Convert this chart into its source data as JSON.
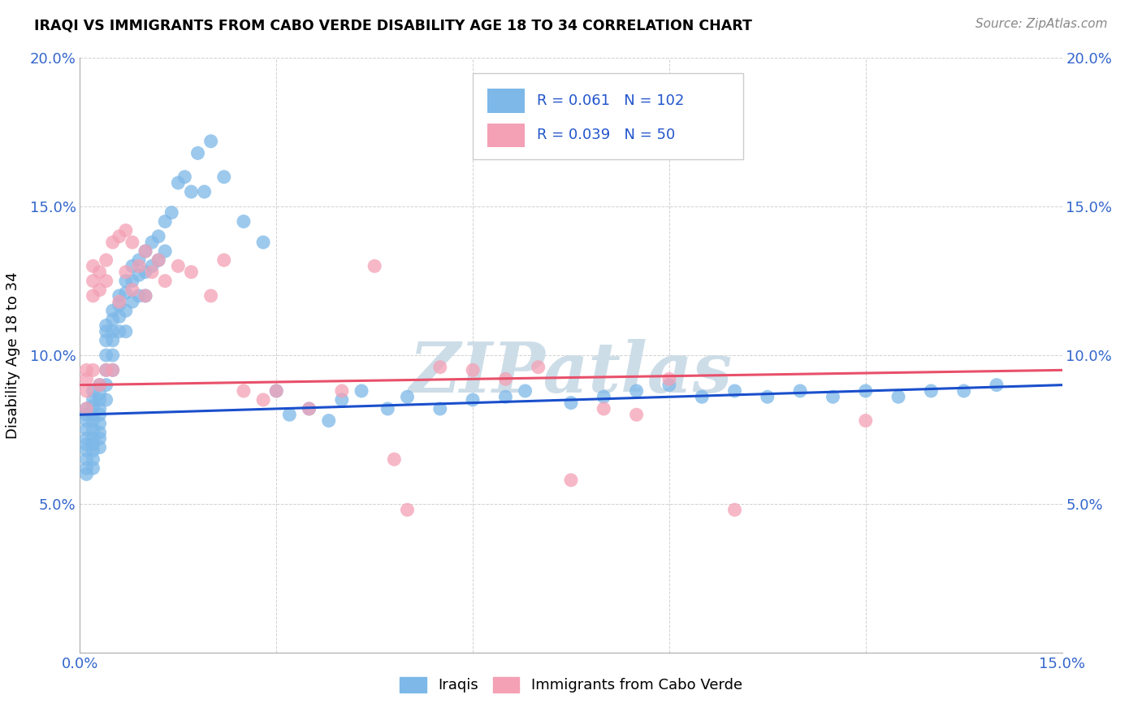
{
  "title": "IRAQI VS IMMIGRANTS FROM CABO VERDE DISABILITY AGE 18 TO 34 CORRELATION CHART",
  "source": "Source: ZipAtlas.com",
  "ylabel": "Disability Age 18 to 34",
  "xlim": [
    0.0,
    0.15
  ],
  "ylim": [
    0.0,
    0.2
  ],
  "iraqis_color": "#7db8e8",
  "cabo_verde_color": "#f4a0b5",
  "iraqis_line_color": "#1a4fcc",
  "cabo_verde_line_color": "#e8506a",
  "iraqis_R": 0.061,
  "iraqis_N": 102,
  "cabo_verde_R": 0.039,
  "cabo_verde_N": 50,
  "legend_label_iraqis": "Iraqis",
  "legend_label_cabo_verde": "Immigrants from Cabo Verde",
  "watermark": "ZIPatlas",
  "watermark_color": "#cddde8",
  "iraqis_line_start_y": 0.08,
  "iraqis_line_end_y": 0.09,
  "cabo_verde_line_start_y": 0.09,
  "cabo_verde_line_end_y": 0.095,
  "iraqis_x": [
    0.001,
    0.001,
    0.001,
    0.001,
    0.001,
    0.001,
    0.001,
    0.001,
    0.001,
    0.001,
    0.002,
    0.002,
    0.002,
    0.002,
    0.002,
    0.002,
    0.002,
    0.002,
    0.002,
    0.002,
    0.002,
    0.003,
    0.003,
    0.003,
    0.003,
    0.003,
    0.003,
    0.003,
    0.003,
    0.003,
    0.004,
    0.004,
    0.004,
    0.004,
    0.004,
    0.004,
    0.004,
    0.005,
    0.005,
    0.005,
    0.005,
    0.005,
    0.005,
    0.006,
    0.006,
    0.006,
    0.006,
    0.007,
    0.007,
    0.007,
    0.007,
    0.008,
    0.008,
    0.008,
    0.009,
    0.009,
    0.009,
    0.01,
    0.01,
    0.01,
    0.011,
    0.011,
    0.012,
    0.012,
    0.013,
    0.013,
    0.014,
    0.015,
    0.016,
    0.017,
    0.018,
    0.019,
    0.02,
    0.022,
    0.025,
    0.028,
    0.03,
    0.032,
    0.035,
    0.038,
    0.04,
    0.043,
    0.047,
    0.05,
    0.055,
    0.06,
    0.065,
    0.068,
    0.075,
    0.08,
    0.085,
    0.09,
    0.095,
    0.1,
    0.105,
    0.11,
    0.115,
    0.12,
    0.125,
    0.13,
    0.135,
    0.14
  ],
  "iraqis_y": [
    0.082,
    0.08,
    0.078,
    0.075,
    0.072,
    0.07,
    0.068,
    0.065,
    0.062,
    0.06,
    0.085,
    0.083,
    0.08,
    0.078,
    0.075,
    0.072,
    0.07,
    0.068,
    0.065,
    0.062,
    0.088,
    0.09,
    0.087,
    0.085,
    0.082,
    0.08,
    0.077,
    0.074,
    0.072,
    0.069,
    0.11,
    0.108,
    0.105,
    0.1,
    0.095,
    0.09,
    0.085,
    0.115,
    0.112,
    0.108,
    0.105,
    0.1,
    0.095,
    0.12,
    0.117,
    0.113,
    0.108,
    0.125,
    0.121,
    0.115,
    0.108,
    0.13,
    0.125,
    0.118,
    0.132,
    0.127,
    0.12,
    0.135,
    0.128,
    0.12,
    0.138,
    0.13,
    0.14,
    0.132,
    0.145,
    0.135,
    0.148,
    0.158,
    0.16,
    0.155,
    0.168,
    0.155,
    0.172,
    0.16,
    0.145,
    0.138,
    0.088,
    0.08,
    0.082,
    0.078,
    0.085,
    0.088,
    0.082,
    0.086,
    0.082,
    0.085,
    0.086,
    0.088,
    0.084,
    0.086,
    0.088,
    0.09,
    0.086,
    0.088,
    0.086,
    0.088,
    0.086,
    0.088,
    0.086,
    0.088,
    0.088,
    0.09
  ],
  "cabo_verde_x": [
    0.001,
    0.001,
    0.001,
    0.001,
    0.002,
    0.002,
    0.002,
    0.002,
    0.003,
    0.003,
    0.003,
    0.004,
    0.004,
    0.004,
    0.005,
    0.005,
    0.006,
    0.006,
    0.007,
    0.007,
    0.008,
    0.008,
    0.009,
    0.01,
    0.01,
    0.011,
    0.012,
    0.013,
    0.015,
    0.017,
    0.02,
    0.022,
    0.025,
    0.028,
    0.03,
    0.035,
    0.04,
    0.045,
    0.048,
    0.05,
    0.055,
    0.06,
    0.065,
    0.07,
    0.075,
    0.08,
    0.085,
    0.09,
    0.1,
    0.12
  ],
  "cabo_verde_y": [
    0.095,
    0.092,
    0.088,
    0.082,
    0.13,
    0.125,
    0.12,
    0.095,
    0.128,
    0.122,
    0.09,
    0.132,
    0.125,
    0.095,
    0.138,
    0.095,
    0.14,
    0.118,
    0.142,
    0.128,
    0.138,
    0.122,
    0.13,
    0.135,
    0.12,
    0.128,
    0.132,
    0.125,
    0.13,
    0.128,
    0.12,
    0.132,
    0.088,
    0.085,
    0.088,
    0.082,
    0.088,
    0.13,
    0.065,
    0.048,
    0.096,
    0.095,
    0.092,
    0.096,
    0.058,
    0.082,
    0.08,
    0.092,
    0.048,
    0.078
  ]
}
